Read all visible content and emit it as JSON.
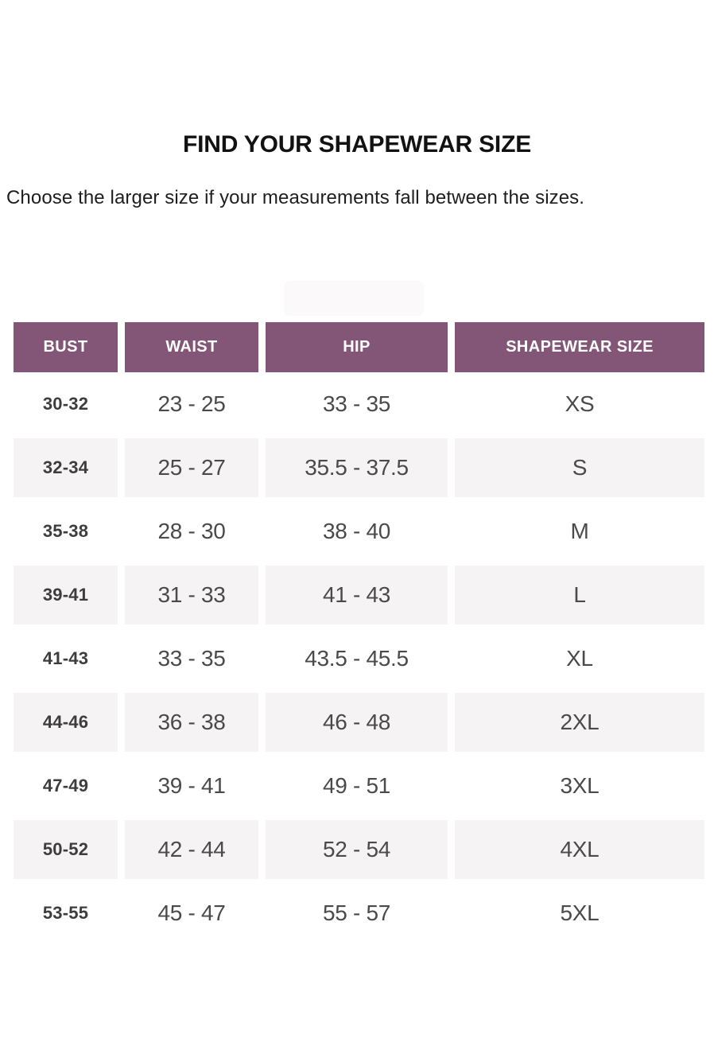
{
  "header": {
    "title": "FIND YOUR SHAPEWEAR SIZE",
    "subtitle": "Choose the larger size if your measurements fall between the sizes."
  },
  "colors": {
    "header_bg": "#835677",
    "header_text": "#ffffff",
    "stripe_bg": "#f5f3f4",
    "body_text": "#4a4a4a",
    "bust_text": "#3d3d3d",
    "watermark_bg": "#fcf9fb"
  },
  "chart_data": {
    "type": "table",
    "title": "FIND YOUR SHAPEWEAR SIZE",
    "subtitle": "Choose the larger size if your measurements fall between the sizes.",
    "columns": [
      "BUST",
      "WAIST",
      "HIP",
      "SHAPEWEAR SIZE"
    ],
    "rows": [
      [
        "30-32",
        "23 - 25",
        "33 - 35",
        "XS"
      ],
      [
        "32-34",
        "25 - 27",
        "35.5 - 37.5",
        "S"
      ],
      [
        "35-38",
        "28 - 30",
        "38 - 40",
        "M"
      ],
      [
        "39-41",
        "31 - 33",
        "41 - 43",
        "L"
      ],
      [
        "41-43",
        "33 - 35",
        "43.5 - 45.5",
        "XL"
      ],
      [
        "44-46",
        "36 - 38",
        "46 - 48",
        "2XL"
      ],
      [
        "47-49",
        "39 - 41",
        "49 - 51",
        "3XL"
      ],
      [
        "50-52",
        "42 - 44",
        "52 - 54",
        "4XL"
      ],
      [
        "53-55",
        "45 - 47",
        "55 - 57",
        "5XL"
      ]
    ],
    "layout": {
      "striped_row_indices": [
        1,
        3,
        5,
        7
      ],
      "grid": "off",
      "header_style": "solid-plum-blocks"
    }
  }
}
